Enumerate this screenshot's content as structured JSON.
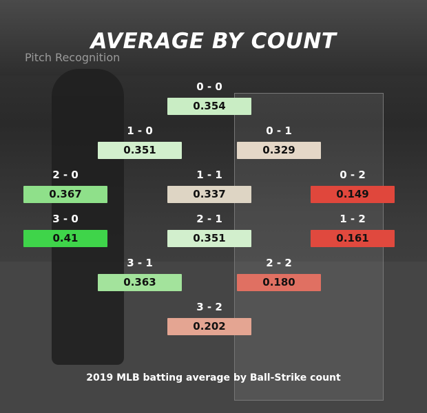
{
  "photo_text": "Pitch Recognition",
  "title": "AVERAGE BY COUNT",
  "caption": "2019 MLB batting average by Ball-Strike count",
  "cells": [
    {
      "count": "0 - 0",
      "value": "0.354",
      "color": "#c9edc4"
    },
    {
      "count": "1 - 0",
      "value": "0.351",
      "color": "#d2f0cd"
    },
    {
      "count": "0 - 1",
      "value": "0.329",
      "color": "#e4d7c7"
    },
    {
      "count": "2 - 0",
      "value": "0.367",
      "color": "#8fe08a"
    },
    {
      "count": "1 - 1",
      "value": "0.337",
      "color": "#ded5c4"
    },
    {
      "count": "0 - 2",
      "value": "0.149",
      "color": "#e0473c"
    },
    {
      "count": "3 - 0",
      "value": "0.41",
      "color": "#3fd44a"
    },
    {
      "count": "2 - 1",
      "value": "0.351",
      "color": "#d2efcd"
    },
    {
      "count": "1 - 2",
      "value": "0.161",
      "color": "#e0493e"
    },
    {
      "count": "3 - 1",
      "value": "0.363",
      "color": "#a3e39c"
    },
    {
      "count": "2 - 2",
      "value": "0.180",
      "color": "#e07062"
    },
    {
      "count": "3 - 2",
      "value": "0.202",
      "color": "#e4a592"
    }
  ]
}
